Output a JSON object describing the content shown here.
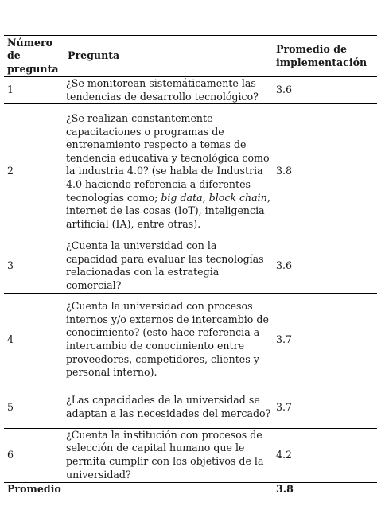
{
  "table": {
    "headers": {
      "number": "Número de pregunta",
      "question": "Pregunta",
      "average": "Promedio de implementación"
    },
    "rows": [
      {
        "number": "1",
        "question_parts": [
          {
            "text": "¿Se monitorean sistemáticamente las tendencias de desarrollo tecnológico?",
            "italic": false
          }
        ],
        "value": "3.6"
      },
      {
        "number": "2",
        "question_parts": [
          {
            "text": "¿Se realizan constantemente capacitaciones o programas de entrenamiento respecto a temas de tendencia educativa y tecnológica como la industria 4.0? (se habla de Industria 4.0 haciendo referencia a diferentes tecnologías como; ",
            "italic": false
          },
          {
            "text": "big data, block chain",
            "italic": true
          },
          {
            "text": ", internet de las cosas (IoT), inteligencia artificial (IA), entre otras).",
            "italic": false
          }
        ],
        "value": "3.8"
      },
      {
        "number": "3",
        "question_parts": [
          {
            "text": "¿Cuenta la universidad con la capacidad para evaluar las tecnologías relacionadas con la estrategia comercial?",
            "italic": false
          }
        ],
        "value": "3.6"
      },
      {
        "number": "4",
        "question_parts": [
          {
            "text": "¿Cuenta la universidad con procesos internos y/o externos de intercambio de conocimiento? (esto hace referencia a intercambio de conocimiento entre proveedores, competidores, clientes y personal interno).",
            "italic": false
          }
        ],
        "value": "3.7"
      },
      {
        "number": "5",
        "question_parts": [
          {
            "text": "¿Las capacidades de la universidad se adaptan a las necesidades del mercado?",
            "italic": false
          }
        ],
        "value": "3.7"
      },
      {
        "number": "6",
        "question_parts": [
          {
            "text": "¿Cuenta la institución con procesos de selección de capital humano que le permita cumplir con los objetivos de la universidad?",
            "italic": false
          }
        ],
        "value": "4.2"
      }
    ],
    "total": {
      "label": "Promedio",
      "value": "3.8"
    }
  }
}
